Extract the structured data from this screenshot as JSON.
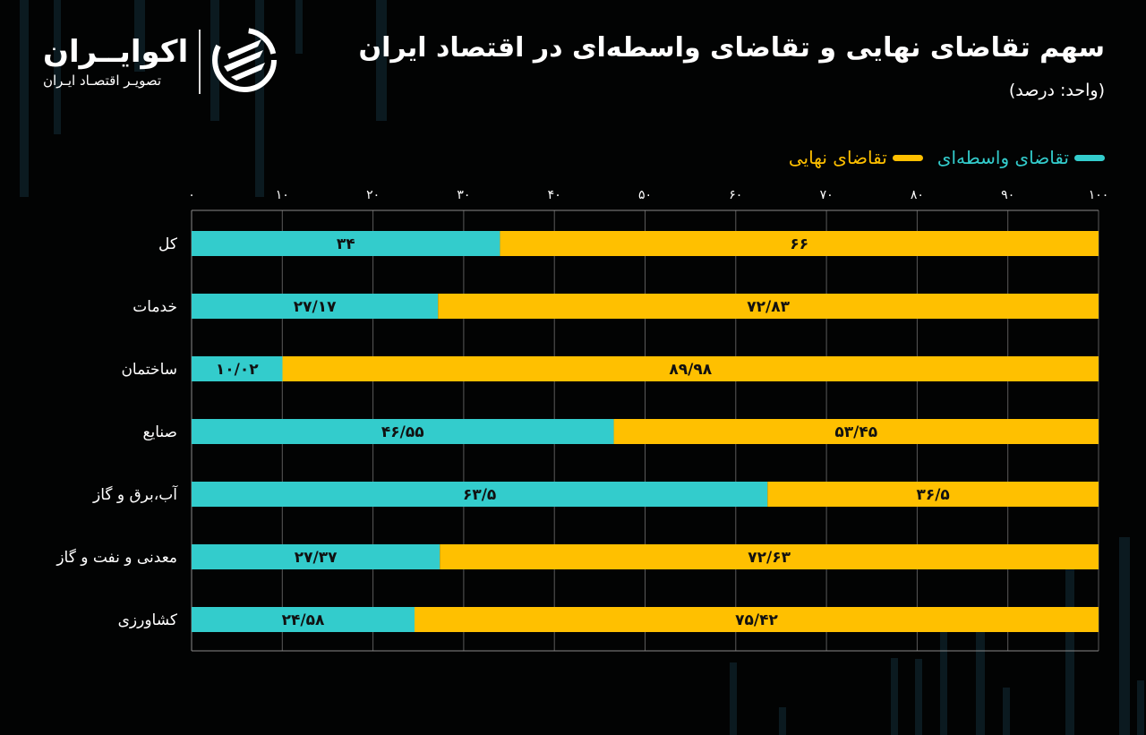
{
  "header": {
    "title": "سهم تقاضای نهایی و تقاضای واسطه‌ای در اقتصاد ایران",
    "subtitle": "(واحد: درصد)"
  },
  "logo": {
    "name": "اکوایــران",
    "tagline": "تصویـر اقتصـاد ایـران",
    "icon": "ecoiran-swirl-icon"
  },
  "colors": {
    "background": "#020303",
    "intermediate": "#33cccc",
    "final": "#ffc000",
    "grid": "#5a5a5a"
  },
  "chart_data": {
    "type": "bar",
    "orientation": "horizontal",
    "stacked": true,
    "title": "سهم تقاضای نهایی و تقاضای واسطه‌ای در اقتصاد ایران",
    "subtitle": "(واحد: درصد)",
    "xlabel": "",
    "ylabel": "",
    "xlim": [
      0,
      100
    ],
    "x_ticks": [
      0,
      10,
      20,
      30,
      40,
      50,
      60,
      70,
      80,
      90,
      100
    ],
    "x_tick_labels": [
      "۰",
      "۱۰",
      "۲۰",
      "۳۰",
      "۴۰",
      "۵۰",
      "۶۰",
      "۷۰",
      "۸۰",
      "۹۰",
      "۱۰۰"
    ],
    "x_axis_position": "top",
    "grid": true,
    "legend_position": "top-right",
    "categories": [
      "کل",
      "خدمات",
      "ساختمان",
      "صنایع",
      "آب،برق و گاز",
      "معدنی و نفت و گاز",
      "کشاورزی"
    ],
    "series": [
      {
        "name": "تقاضای واسطه‌ای",
        "color": "#33cccc",
        "values": [
          34,
          27.17,
          10.02,
          46.55,
          63.5,
          27.37,
          24.58
        ],
        "labels": [
          "۳۴",
          "۲۷/۱۷",
          "۱۰/۰۲",
          "۴۶/۵۵",
          "۶۳/۵",
          "۲۷/۳۷",
          "۲۴/۵۸"
        ]
      },
      {
        "name": "تقاضای نهایی",
        "color": "#ffc000",
        "values": [
          66,
          72.83,
          89.98,
          53.45,
          36.5,
          72.63,
          75.42
        ],
        "labels": [
          "۶۶",
          "۷۲/۸۳",
          "۸۹/۹۸",
          "۵۳/۴۵",
          "۳۶/۵",
          "۷۲/۶۳",
          "۷۵/۴۲"
        ]
      }
    ]
  }
}
